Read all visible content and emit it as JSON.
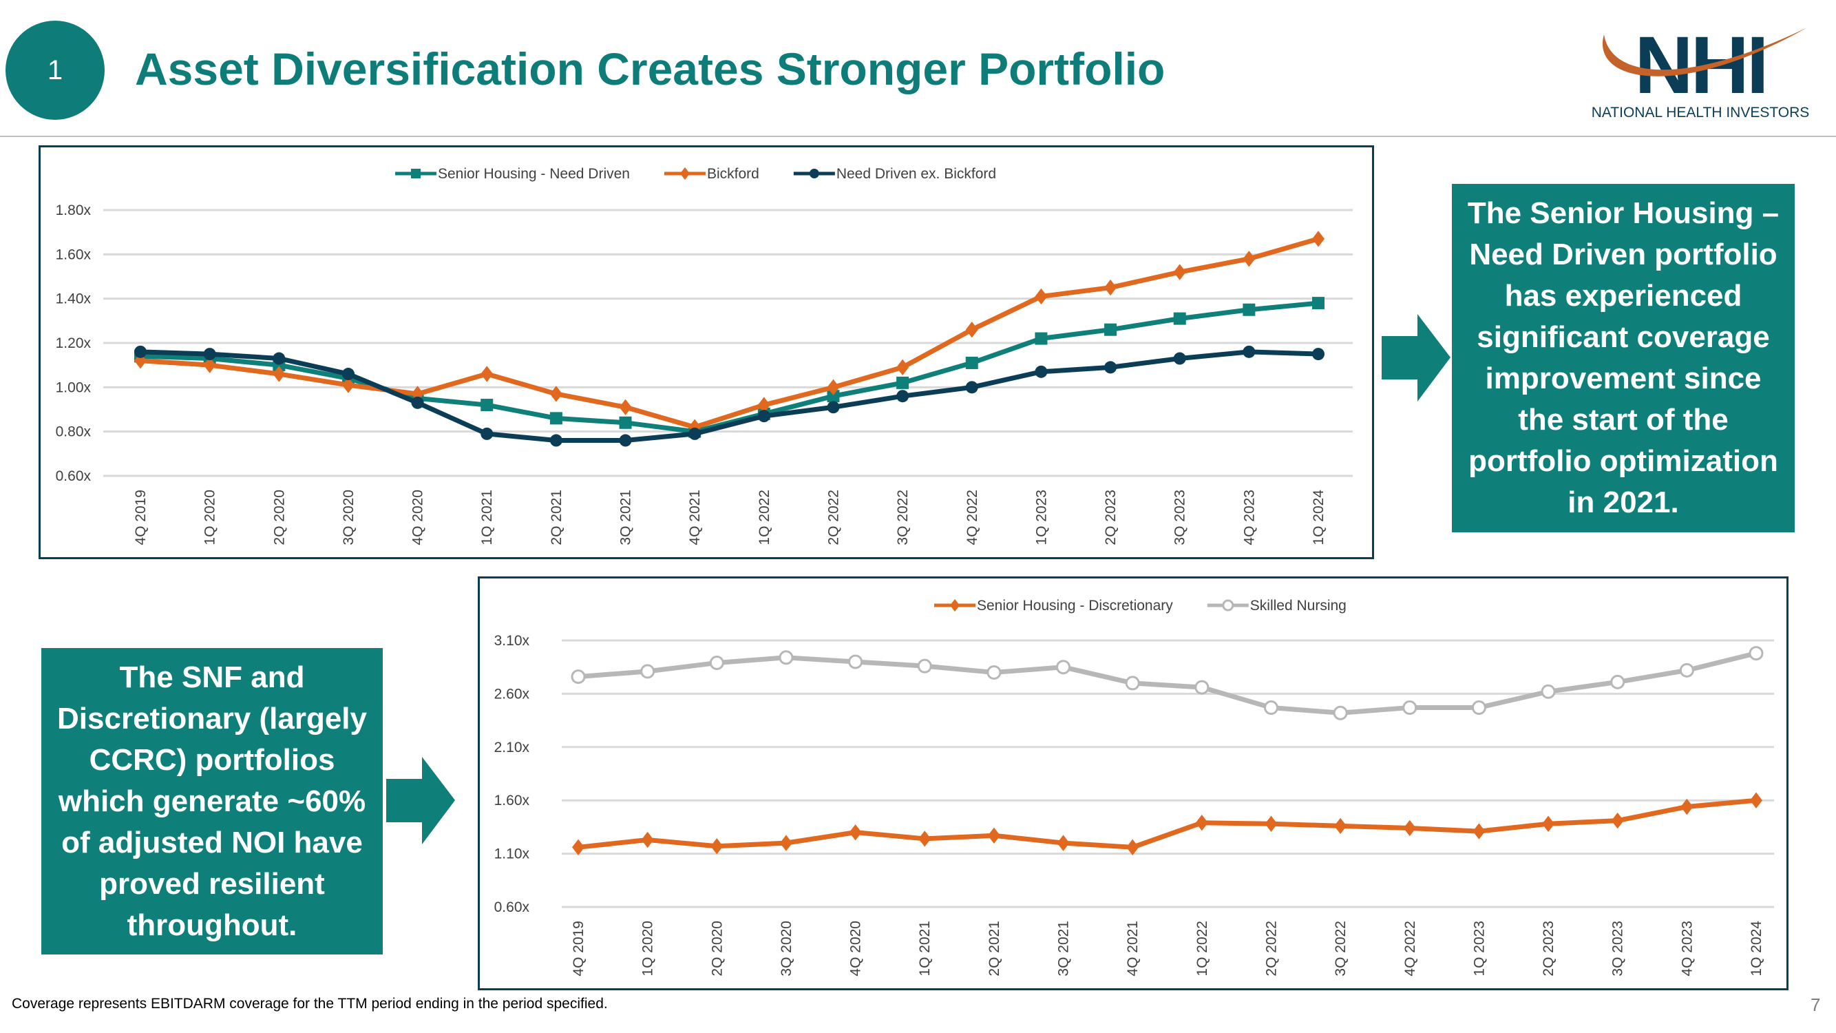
{
  "header": {
    "section_number": "1",
    "title": "Asset Diversification Creates Stronger Portfolio",
    "logo_text": "NHI",
    "logo_subtitle": "NATIONAL HEALTH INVESTORS"
  },
  "callouts": {
    "right": "The Senior Housing – Need Driven portfolio has experienced significant coverage improvement since the start of the portfolio optimization in 2021.",
    "left": "The SNF and Discretionary (largely CCRC) portfolios which generate ~60% of adjusted NOI have proved resilient throughout."
  },
  "footnote": "Coverage represents EBITDARM coverage for the TTM period ending in the period specified.",
  "page_number": "7",
  "colors": {
    "teal": "#0e7f79",
    "orange": "#e0691f",
    "navy": "#0b3d56",
    "gray": "#b7b7b7"
  },
  "chart_data": [
    {
      "type": "line",
      "categories": [
        "4Q 2019",
        "1Q 2020",
        "2Q 2020",
        "3Q 2020",
        "4Q 2020",
        "1Q 2021",
        "2Q 2021",
        "3Q 2021",
        "4Q 2021",
        "1Q 2022",
        "2Q 2022",
        "3Q 2022",
        "4Q 2022",
        "1Q 2023",
        "2Q 2023",
        "3Q 2023",
        "4Q 2023",
        "1Q 2024"
      ],
      "ylim": [
        0.6,
        1.8
      ],
      "yticks": [
        "0.60x",
        "0.80x",
        "1.00x",
        "1.20x",
        "1.40x",
        "1.60x",
        "1.80x"
      ],
      "grid": true,
      "legend": "top",
      "series": [
        {
          "name": "Senior Housing - Need Driven",
          "color": "#0e7f79",
          "marker": "square",
          "values": [
            1.14,
            1.13,
            1.1,
            1.04,
            0.95,
            0.92,
            0.86,
            0.84,
            0.8,
            0.88,
            0.96,
            1.02,
            1.11,
            1.22,
            1.26,
            1.31,
            1.35,
            1.38
          ]
        },
        {
          "name": "Bickford",
          "color": "#e0691f",
          "marker": "diamond",
          "values": [
            1.12,
            1.1,
            1.06,
            1.01,
            0.97,
            1.06,
            0.97,
            0.91,
            0.82,
            0.92,
            1.0,
            1.09,
            1.26,
            1.41,
            1.45,
            1.52,
            1.58,
            1.67
          ]
        },
        {
          "name": "Need Driven ex. Bickford",
          "color": "#0b3d56",
          "marker": "circle",
          "values": [
            1.16,
            1.15,
            1.13,
            1.06,
            0.93,
            0.79,
            0.76,
            0.76,
            0.79,
            0.87,
            0.91,
            0.96,
            1.0,
            1.07,
            1.09,
            1.13,
            1.16,
            1.15
          ]
        }
      ]
    },
    {
      "type": "line",
      "categories": [
        "4Q 2019",
        "1Q 2020",
        "2Q 2020",
        "3Q 2020",
        "4Q 2020",
        "1Q 2021",
        "2Q 2021",
        "3Q 2021",
        "4Q 2021",
        "1Q 2022",
        "2Q 2022",
        "3Q 2022",
        "4Q 2022",
        "1Q 2023",
        "2Q 2023",
        "3Q 2023",
        "4Q 2023",
        "1Q 2024"
      ],
      "ylim": [
        0.6,
        3.1
      ],
      "yticks": [
        "0.60x",
        "1.10x",
        "1.60x",
        "2.10x",
        "2.60x",
        "3.10x"
      ],
      "grid": true,
      "legend": "top",
      "series": [
        {
          "name": "Senior Housing - Discretionary",
          "color": "#e0691f",
          "marker": "diamond",
          "values": [
            1.16,
            1.23,
            1.17,
            1.2,
            1.3,
            1.24,
            1.27,
            1.2,
            1.16,
            1.39,
            1.38,
            1.36,
            1.34,
            1.31,
            1.38,
            1.41,
            1.54,
            1.6
          ]
        },
        {
          "name": "Skilled Nursing",
          "color": "#b7b7b7",
          "marker": "circle-open",
          "values": [
            2.76,
            2.81,
            2.89,
            2.94,
            2.9,
            2.86,
            2.8,
            2.85,
            2.7,
            2.66,
            2.47,
            2.42,
            2.47,
            2.47,
            2.62,
            2.71,
            2.82,
            2.98
          ]
        }
      ]
    }
  ]
}
